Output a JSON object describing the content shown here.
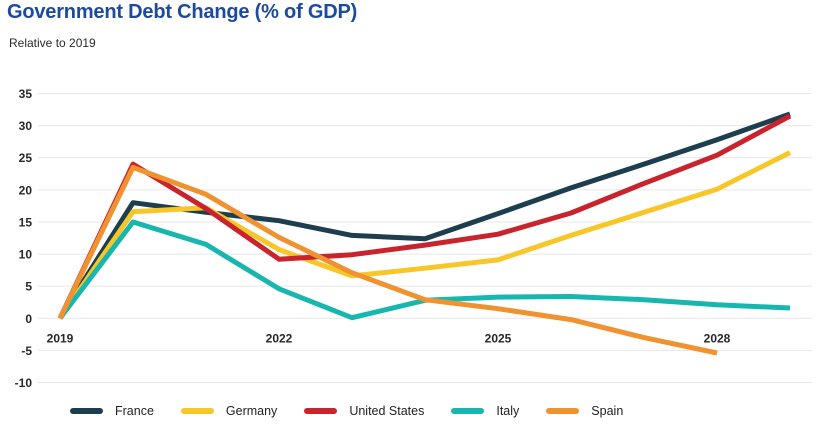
{
  "header": {
    "title": "Government Debt Change (% of GDP)",
    "subtitle": "Relative to 2019"
  },
  "colors": {
    "title_blue": "#1c4a9e",
    "axis_text": "#29262a",
    "gridline": "#e7e7e7",
    "background": "#ffffff"
  },
  "chart_data": {
    "type": "line",
    "x": [
      2019,
      2020,
      2021,
      2022,
      2023,
      2024,
      2025,
      2026,
      2027,
      2028,
      2029
    ],
    "x_tick_labels": [
      "2019",
      "2022",
      "2025",
      "2028"
    ],
    "x_tick_years": [
      2019,
      2022,
      2025,
      2028
    ],
    "y_ticks": [
      35,
      30,
      25,
      20,
      15,
      10,
      5,
      0,
      -5,
      -10
    ],
    "ylim": [
      -10,
      35
    ],
    "grid": true,
    "legend_position": "bottom",
    "title": "Government Debt Change (% of GDP)",
    "subtitle": "Relative to 2019",
    "series": [
      {
        "name": "France",
        "color": "#1d3e4e",
        "values": [
          0,
          18,
          16.5,
          15.2,
          12.9,
          12.4,
          16.3,
          20.3,
          24,
          27.8,
          31.8
        ]
      },
      {
        "name": "Germany",
        "color": "#f7c629",
        "values": [
          0,
          16.6,
          17.2,
          10.7,
          6.6,
          7.8,
          9.1,
          12.9,
          16.5,
          20.1,
          25.8
        ]
      },
      {
        "name": "United States",
        "color": "#c9242e",
        "values": [
          0,
          24,
          17.1,
          9.2,
          9.9,
          11.4,
          13.1,
          16.4,
          21,
          25.4,
          31.5
        ]
      },
      {
        "name": "Italy",
        "color": "#17b6ae",
        "values": [
          0,
          15,
          11.5,
          4.6,
          0.1,
          2.8,
          3.3,
          3.4,
          2.9,
          2.1,
          1.6
        ]
      },
      {
        "name": "Spain",
        "color": "#f0922f",
        "values": [
          0,
          23.5,
          19.3,
          12.6,
          7.1,
          2.9,
          1.5,
          -0.2,
          -3,
          -5.4,
          null
        ]
      }
    ]
  }
}
